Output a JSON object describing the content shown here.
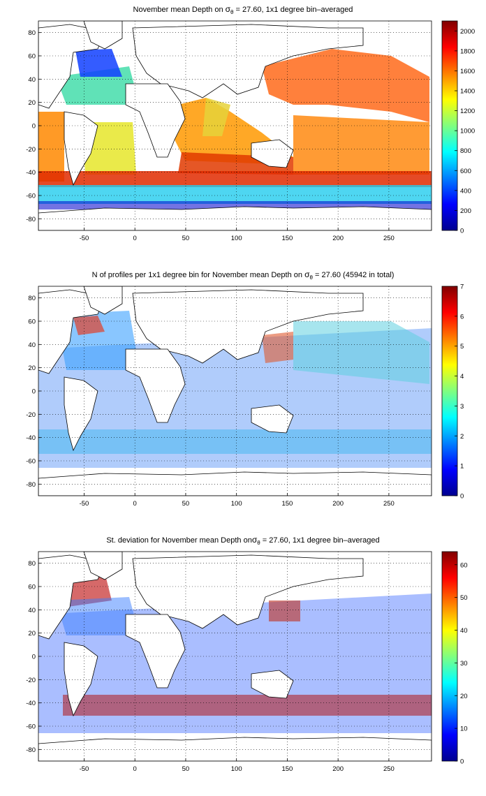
{
  "chart_data": [
    {
      "type": "heatmap",
      "title": {
        "prefix": "November mean Depth on ",
        "symbol": "σ",
        "subscript": "θ",
        "suffix": " = 27.60, 1x1 degree bin–averaged"
      },
      "xlabel": "",
      "ylabel": "",
      "xlim": [
        -95,
        292
      ],
      "ylim": [
        -90,
        90
      ],
      "x_ticks": [
        -50,
        0,
        50,
        100,
        150,
        200,
        250
      ],
      "y_ticks": [
        80,
        60,
        40,
        20,
        0,
        -20,
        -40,
        -60,
        -80
      ],
      "grid": true,
      "colorbar": {
        "colormap": "jet",
        "vmin": 0,
        "vmax": 2100,
        "ticks": [
          0,
          200,
          400,
          600,
          800,
          1000,
          1200,
          1400,
          1600,
          1800,
          2000
        ]
      }
    },
    {
      "type": "heatmap",
      "title": {
        "prefix": "N of profiles per 1x1 degree bin for November mean Depth on ",
        "symbol": "σ",
        "subscript": "θ",
        "suffix": " = 27.60 (45942 in total)"
      },
      "xlabel": "",
      "ylabel": "",
      "xlim": [
        -95,
        292
      ],
      "ylim": [
        -90,
        90
      ],
      "x_ticks": [
        -50,
        0,
        50,
        100,
        150,
        200,
        250
      ],
      "y_ticks": [
        80,
        60,
        40,
        20,
        0,
        -20,
        -40,
        -60,
        -80
      ],
      "grid": true,
      "colorbar": {
        "colormap": "jet",
        "vmin": 0,
        "vmax": 7,
        "ticks": [
          0,
          1,
          2,
          3,
          4,
          5,
          6,
          7
        ]
      }
    },
    {
      "type": "heatmap",
      "title": {
        "prefix": "St. deviation for November mean Depth on",
        "symbol": "σ",
        "subscript": "θ",
        "suffix": " = 27.60, 1x1 degree bin–averaged"
      },
      "xlabel": "",
      "ylabel": "",
      "xlim": [
        -95,
        292
      ],
      "ylim": [
        -90,
        90
      ],
      "x_ticks": [
        -50,
        0,
        50,
        100,
        150,
        200,
        250
      ],
      "y_ticks": [
        80,
        60,
        40,
        20,
        0,
        -20,
        -40,
        -60,
        -80
      ],
      "grid": true,
      "colorbar": {
        "colormap": "jet",
        "vmin": 0,
        "vmax": 64,
        "ticks": [
          0,
          10,
          20,
          30,
          40,
          50,
          60
        ]
      }
    }
  ]
}
